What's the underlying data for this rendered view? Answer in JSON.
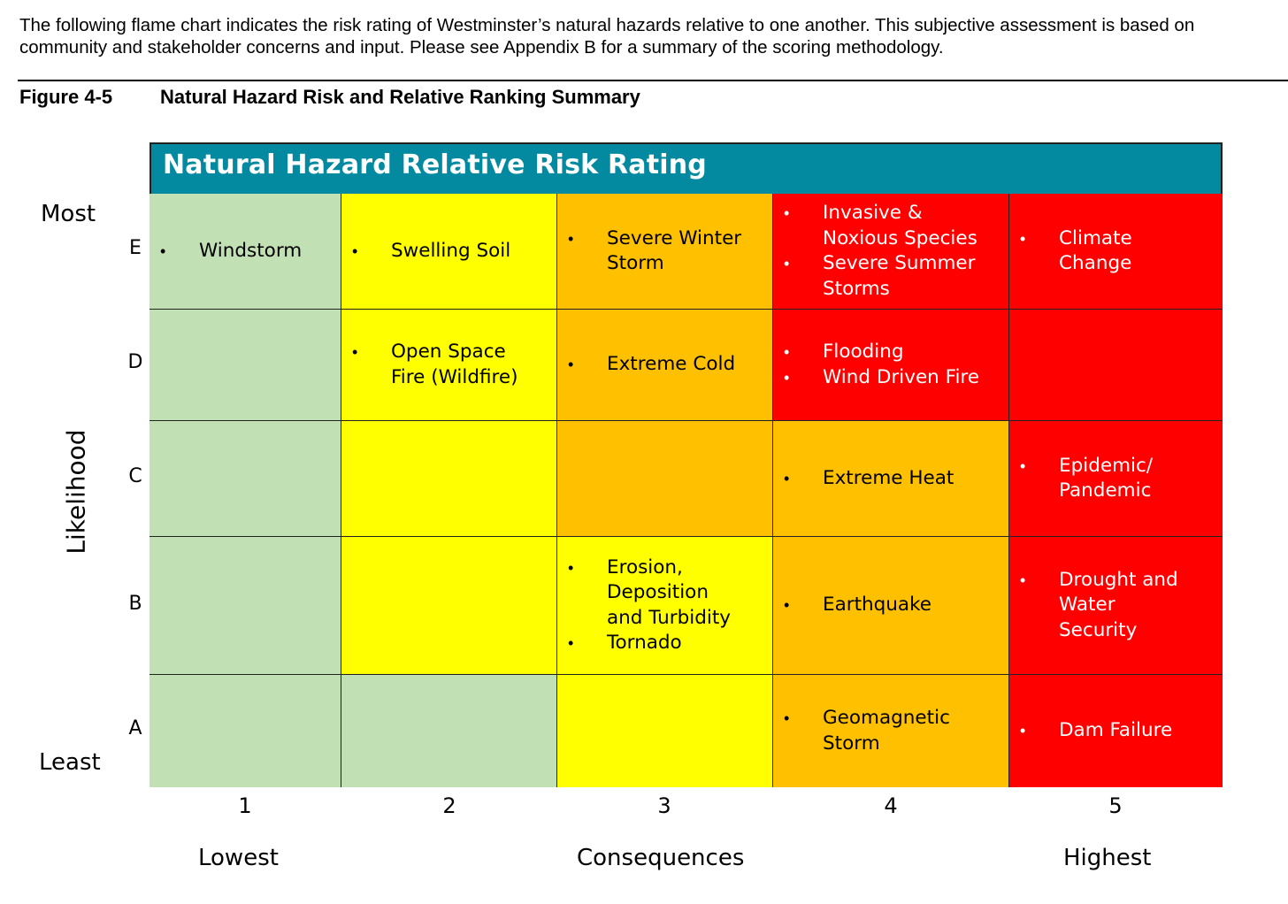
{
  "intro_text": "The following flame chart indicates the risk rating of Westminster’s natural hazards relative to one another. This subjective assessment is based on community and stakeholder concerns and input. Please see Appendix B for a summary of the scoring methodology.",
  "figure": {
    "number": "Figure 4-5",
    "title": "Natural Hazard Risk and Relative Ranking Summary"
  },
  "chart_data": {
    "type": "table",
    "title": "Natural Hazard Relative Risk Rating",
    "x_axis": {
      "label": "Consequences",
      "low_label": "Lowest",
      "high_label": "Highest",
      "ticks": [
        "1",
        "2",
        "3",
        "4",
        "5"
      ]
    },
    "y_axis": {
      "label": "Likelihood",
      "top_label": "Most",
      "bottom_label": "Least",
      "ticks": [
        "E",
        "D",
        "C",
        "B",
        "A"
      ]
    },
    "rows": [
      {
        "likelihood": "E",
        "cells": [
          {
            "consequence": 1,
            "color": "#c1e0b3",
            "hazards": [
              "Windstorm"
            ]
          },
          {
            "consequence": 2,
            "color": "#ffff00",
            "hazards": [
              "Swelling Soil"
            ]
          },
          {
            "consequence": 3,
            "color": "#ffc000",
            "hazards": [
              "Severe Winter\nStorm"
            ]
          },
          {
            "consequence": 4,
            "color": "#ff0000",
            "hazards": [
              "Invasive &\nNoxious Species",
              "Severe Summer\nStorms"
            ]
          },
          {
            "consequence": 5,
            "color": "#ff0000",
            "hazards": [
              "Climate\nChange"
            ]
          }
        ]
      },
      {
        "likelihood": "D",
        "cells": [
          {
            "consequence": 1,
            "color": "#c1e0b3",
            "hazards": []
          },
          {
            "consequence": 2,
            "color": "#ffff00",
            "hazards": [
              "Open Space\nFire (Wildfire)"
            ]
          },
          {
            "consequence": 3,
            "color": "#ffc000",
            "hazards": [
              "Extreme Cold"
            ]
          },
          {
            "consequence": 4,
            "color": "#ff0000",
            "hazards": [
              "Flooding",
              "Wind Driven Fire"
            ]
          },
          {
            "consequence": 5,
            "color": "#ff0000",
            "hazards": []
          }
        ]
      },
      {
        "likelihood": "C",
        "cells": [
          {
            "consequence": 1,
            "color": "#c1e0b3",
            "hazards": []
          },
          {
            "consequence": 2,
            "color": "#ffff00",
            "hazards": []
          },
          {
            "consequence": 3,
            "color": "#ffc000",
            "hazards": []
          },
          {
            "consequence": 4,
            "color": "#ffc000",
            "hazards": [
              "Extreme Heat"
            ]
          },
          {
            "consequence": 5,
            "color": "#ff0000",
            "hazards": [
              "Epidemic/\nPandemic"
            ]
          }
        ]
      },
      {
        "likelihood": "B",
        "cells": [
          {
            "consequence": 1,
            "color": "#c1e0b3",
            "hazards": []
          },
          {
            "consequence": 2,
            "color": "#ffff00",
            "hazards": []
          },
          {
            "consequence": 3,
            "color": "#ffff00",
            "hazards": [
              "Erosion,\nDeposition\nand Turbidity",
              "Tornado"
            ]
          },
          {
            "consequence": 4,
            "color": "#ffc000",
            "hazards": [
              "Earthquake"
            ]
          },
          {
            "consequence": 5,
            "color": "#ff0000",
            "hazards": [
              "Drought and\nWater\nSecurity"
            ]
          }
        ]
      },
      {
        "likelihood": "A",
        "cells": [
          {
            "consequence": 1,
            "color": "#c1e0b3",
            "hazards": []
          },
          {
            "consequence": 2,
            "color": "#c1e0b3",
            "hazards": []
          },
          {
            "consequence": 3,
            "color": "#ffff00",
            "hazards": []
          },
          {
            "consequence": 4,
            "color": "#ffc000",
            "hazards": [
              "Geomagnetic\nStorm"
            ]
          },
          {
            "consequence": 5,
            "color": "#ff0000",
            "hazards": [
              "Dam Failure"
            ]
          }
        ]
      }
    ]
  }
}
